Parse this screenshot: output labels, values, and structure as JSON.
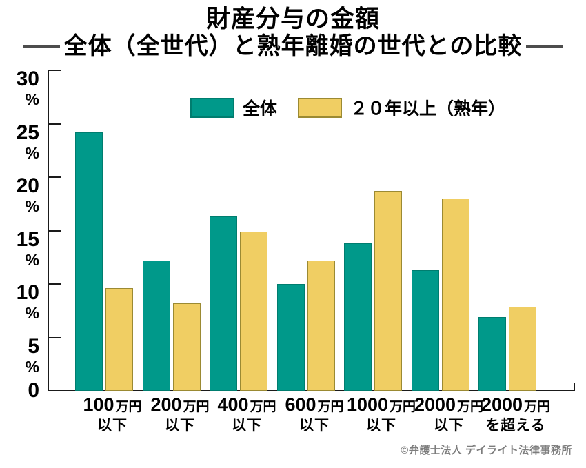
{
  "title": {
    "line1": "財産分与の金額",
    "line2": "全体（全世代）と熟年離婚の世代との比較"
  },
  "colors": {
    "series1_fill": "#00998A",
    "series1_border": "#007D6F",
    "series2_fill": "#F0CE63",
    "series2_border": "#9B8A33",
    "axis": "#1a1a1a",
    "title_dash": "#4d4d4d",
    "footer_text": "#7d7d7d"
  },
  "chart_data": {
    "type": "bar",
    "title": "財産分与の金額 ―全体（全世代）と熟年離婚の世代との比較―",
    "categories": [
      "100万円以下",
      "200万円以下",
      "400万円以下",
      "600万円以下",
      "1000万円以下",
      "2000万円以下",
      "2000万円を超える"
    ],
    "xtick_parts": [
      {
        "value": "100",
        "unit": "万円",
        "suffix": "以下"
      },
      {
        "value": "200",
        "unit": "万円",
        "suffix": "以下"
      },
      {
        "value": "400",
        "unit": "万円",
        "suffix": "以下"
      },
      {
        "value": "600",
        "unit": "万円",
        "suffix": "以下"
      },
      {
        "value": "1000",
        "unit": "万円",
        "suffix": "以下"
      },
      {
        "value": "2000",
        "unit": "万円",
        "suffix": "以下"
      },
      {
        "value": "2000",
        "unit": "万円",
        "suffix": "を超える"
      }
    ],
    "series": [
      {
        "name": "全体",
        "color": "#00998A",
        "values": [
          24.2,
          12.2,
          16.3,
          10.0,
          13.8,
          11.3,
          6.9
        ]
      },
      {
        "name": "２０年以上（熟年）",
        "color": "#F0CE63",
        "values": [
          9.6,
          8.2,
          14.9,
          12.2,
          18.7,
          18.0,
          7.9
        ]
      }
    ],
    "ylabel": "%",
    "ylim": [
      0,
      30
    ],
    "ytick_interval": 5,
    "yticks": [
      {
        "label": "30",
        "unit": "%"
      },
      {
        "label": "25",
        "unit": "%"
      },
      {
        "label": "20",
        "unit": "%"
      },
      {
        "label": "15",
        "unit": "%"
      },
      {
        "label": "10",
        "unit": "%"
      },
      {
        "label": "5",
        "unit": "%"
      },
      {
        "label": "0",
        "unit": ""
      }
    ],
    "grid": false,
    "legend_position": "top-center"
  },
  "footer": {
    "credit": "©弁護士法人 デイライト法律事務所"
  }
}
